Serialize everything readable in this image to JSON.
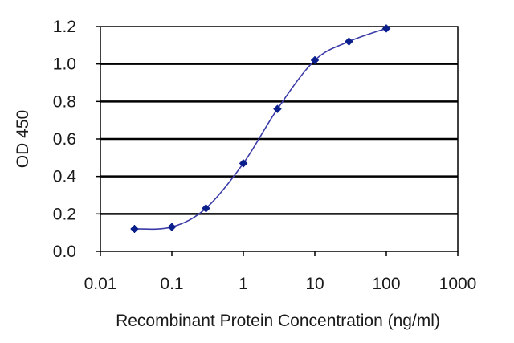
{
  "chart_data": {
    "type": "line",
    "title": "",
    "xlabel": "Recombinant Protein Concentration (ng/ml)",
    "ylabel": "OD 450",
    "x_scale": "log",
    "xlim": [
      0.01,
      1000
    ],
    "ylim": [
      0.0,
      1.2
    ],
    "x_ticks": [
      0.01,
      0.1,
      1,
      10,
      100,
      1000
    ],
    "x_tick_labels": [
      "0.01",
      "0.1",
      "1",
      "10",
      "100",
      "1000"
    ],
    "y_ticks": [
      0.0,
      0.2,
      0.4,
      0.6,
      0.8,
      1.0,
      1.2
    ],
    "y_tick_labels": [
      "0.0",
      "0.2",
      "0.4",
      "0.6",
      "0.8",
      "1.0",
      "1.2"
    ],
    "grid": "horizontal",
    "legend": "none",
    "series": [
      {
        "x": [
          0.03,
          0.1,
          0.3,
          1,
          3,
          10,
          30,
          100
        ],
        "values": [
          0.12,
          0.13,
          0.23,
          0.47,
          0.76,
          1.02,
          1.12,
          1.19
        ],
        "color": "#0b1f8c",
        "line_color": "#3a3aa8",
        "marker": "diamond",
        "smooth": true
      }
    ]
  }
}
